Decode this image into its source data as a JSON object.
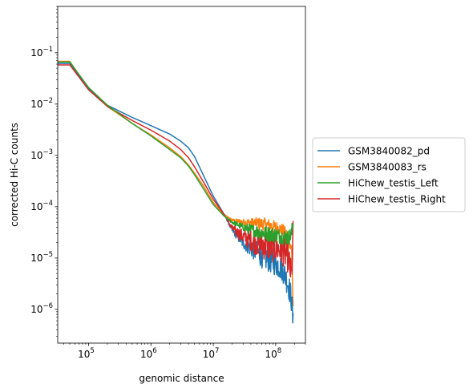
{
  "chart_data": {
    "type": "line",
    "title": "",
    "xlabel": "genomic distance",
    "ylabel": "corrected Hi-C counts",
    "xscale": "log",
    "yscale": "log",
    "xlim": [
      32000,
      300000000
    ],
    "ylim": [
      2.2e-07,
      0.8
    ],
    "grid": false,
    "legend_position": "outside-right",
    "x_ticks": [
      {
        "base": "10",
        "exp": "5",
        "value": 100000
      },
      {
        "base": "10",
        "exp": "6",
        "value": 1000000
      },
      {
        "base": "10",
        "exp": "7",
        "value": 10000000
      },
      {
        "base": "10",
        "exp": "8",
        "value": 100000000
      }
    ],
    "y_ticks": [
      {
        "base": "10",
        "exp": "−6",
        "value": 1e-06
      },
      {
        "base": "10",
        "exp": "−5",
        "value": 1e-05
      },
      {
        "base": "10",
        "exp": "−4",
        "value": 0.0001
      },
      {
        "base": "10",
        "exp": "−3",
        "value": 0.001
      },
      {
        "base": "10",
        "exp": "−2",
        "value": 0.01
      },
      {
        "base": "10",
        "exp": "−1",
        "value": 0.1
      }
    ],
    "series": [
      {
        "name": "GSM3840082_pd",
        "color": "#1f77b4",
        "noise": 0.5,
        "x": [
          30000,
          50000,
          100000,
          200000,
          500000,
          1000000,
          2000000,
          3000000,
          4000000,
          5000000,
          7000000,
          10000000,
          15000000,
          20000000,
          30000000,
          50000000,
          70000000,
          100000000,
          130000000,
          160000000,
          180000000,
          190000000
        ],
        "values": [
          0.062,
          0.062,
          0.02,
          0.0095,
          0.0055,
          0.0038,
          0.0026,
          0.0019,
          0.0014,
          0.00095,
          0.0004,
          0.00016,
          7e-05,
          3.5e-05,
          2e-05,
          1.3e-05,
          1e-05,
          8e-06,
          6e-06,
          3e-06,
          1.5e-06,
          5e-07
        ]
      },
      {
        "name": "GSM3840083_rs",
        "color": "#ff7f0e",
        "noise": 0.25,
        "x": [
          30000,
          50000,
          100000,
          200000,
          500000,
          1000000,
          2000000,
          3000000,
          4000000,
          5000000,
          7000000,
          10000000,
          15000000,
          20000000,
          30000000,
          50000000,
          70000000,
          100000000,
          130000000,
          160000000,
          180000000,
          190000000
        ],
        "values": [
          0.068,
          0.068,
          0.02,
          0.009,
          0.0042,
          0.0025,
          0.0014,
          0.00095,
          0.00065,
          0.00045,
          0.00025,
          0.00012,
          7e-05,
          5.5e-05,
          5e-05,
          4.8e-05,
          4.5e-05,
          4e-05,
          3.5e-05,
          2.5e-05,
          1.5e-05,
          1.2e-06
        ]
      },
      {
        "name": "HiChew_testis_Left",
        "color": "#2ca02c",
        "noise": 0.3,
        "x": [
          30000,
          50000,
          100000,
          200000,
          500000,
          1000000,
          2000000,
          3000000,
          4000000,
          5000000,
          7000000,
          10000000,
          15000000,
          20000000,
          30000000,
          50000000,
          70000000,
          100000000,
          130000000,
          160000000,
          180000000,
          190000000
        ],
        "values": [
          0.066,
          0.066,
          0.021,
          0.0095,
          0.0042,
          0.0024,
          0.0013,
          0.0009,
          0.00062,
          0.00042,
          0.00022,
          0.00011,
          6.5e-05,
          5e-05,
          4e-05,
          3.3e-05,
          3e-05,
          2.8e-05,
          2.6e-05,
          2.5e-05,
          3e-05,
          4.8e-05
        ]
      },
      {
        "name": "HiChew_testis_Right",
        "color": "#d62728",
        "noise": 0.6,
        "x": [
          30000,
          50000,
          100000,
          200000,
          500000,
          1000000,
          2000000,
          3000000,
          4000000,
          5000000,
          7000000,
          10000000,
          15000000,
          20000000,
          30000000,
          50000000,
          70000000,
          100000000,
          130000000,
          160000000,
          180000000,
          190000000
        ],
        "values": [
          0.058,
          0.058,
          0.019,
          0.009,
          0.0048,
          0.0031,
          0.0019,
          0.0013,
          0.0009,
          0.0006,
          0.0003,
          0.00014,
          7e-05,
          3.8e-05,
          2.6e-05,
          2e-05,
          1.8e-05,
          1.6e-05,
          1.4e-05,
          1e-05,
          4e-06,
          2.8e-05
        ]
      }
    ]
  }
}
